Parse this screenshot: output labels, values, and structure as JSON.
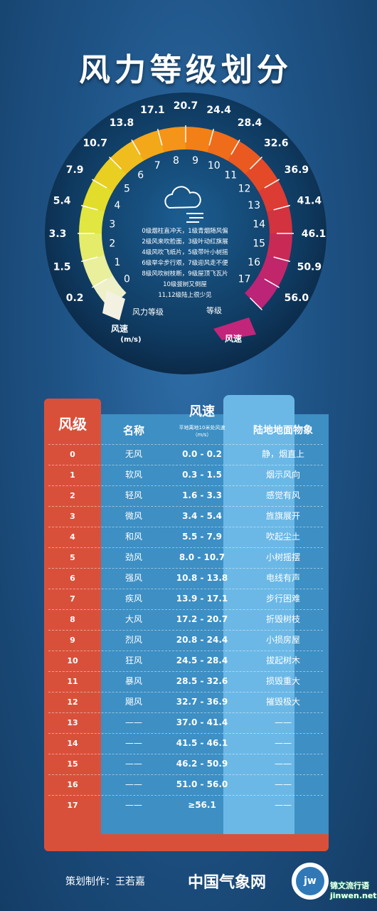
{
  "title": "风力等级划分",
  "gauge": {
    "speeds": [
      "0.2",
      "1.5",
      "3.3",
      "5.4",
      "7.9",
      "10.7",
      "13.8",
      "17.1",
      "20.7",
      "24.4",
      "28.4",
      "32.6",
      "36.9",
      "41.4",
      "46.1",
      "50.9",
      "56.0"
    ],
    "levels": [
      "0",
      "1",
      "2",
      "3",
      "4",
      "5",
      "6",
      "7",
      "8",
      "9",
      "10",
      "11",
      "12",
      "13",
      "14",
      "15",
      "16",
      "17"
    ],
    "level_label": "风力等级",
    "level_label2": "等级",
    "speed_label_left": "风速",
    "speed_unit_left": "(m/s)",
    "speed_label_right": "风速",
    "cloud_icon": "cloud-wind-icon",
    "legend": [
      "0级烟柱直冲天，1级青烟随风偏",
      "2级风来吹脸面，3级叶动红旗展",
      "4级风吹飞纸片，5级带叶小树摇",
      "6级举伞步行艰，7级迎风走不便",
      "8级风吹树枝断，9级屋顶飞瓦片",
      "10级拔树又倒屋",
      "11,12级陆上很少见"
    ]
  },
  "table": {
    "headers": {
      "level": "风级",
      "name": "名称",
      "speed": "风速",
      "speed_sub": "平地离地10米处风速",
      "speed_unit": "（m/s）",
      "phenomenon": "陆地地面物象"
    },
    "rows": [
      {
        "level": "0",
        "name": "无风",
        "speed": "0.0 - 0.2",
        "phenomenon": "静，烟直上"
      },
      {
        "level": "1",
        "name": "软风",
        "speed": "0.3 - 1.5",
        "phenomenon": "烟示风向"
      },
      {
        "level": "2",
        "name": "轻风",
        "speed": "1.6 - 3.3",
        "phenomenon": "感觉有风"
      },
      {
        "level": "3",
        "name": "微风",
        "speed": "3.4 - 5.4",
        "phenomenon": "旌旗展开"
      },
      {
        "level": "4",
        "name": "和风",
        "speed": "5.5 - 7.9",
        "phenomenon": "吹起尘土"
      },
      {
        "level": "5",
        "name": "劲风",
        "speed": "8.0 - 10.7",
        "phenomenon": "小树摇摆"
      },
      {
        "level": "6",
        "name": "强风",
        "speed": "10.8 - 13.8",
        "phenomenon": "电线有声"
      },
      {
        "level": "7",
        "name": "疾风",
        "speed": "13.9 - 17.1",
        "phenomenon": "步行困难"
      },
      {
        "level": "8",
        "name": "大风",
        "speed": "17.2 - 20.7",
        "phenomenon": "折毁树枝"
      },
      {
        "level": "9",
        "name": "烈风",
        "speed": "20.8 - 24.4",
        "phenomenon": "小损房屋"
      },
      {
        "level": "10",
        "name": "狂风",
        "speed": "24.5 - 28.4",
        "phenomenon": "拔起树木"
      },
      {
        "level": "11",
        "name": "暴风",
        "speed": "28.5 - 32.6",
        "phenomenon": "损毁重大"
      },
      {
        "level": "12",
        "name": "飓风",
        "speed": "32.7 - 36.9",
        "phenomenon": "摧毁极大"
      },
      {
        "level": "13",
        "name": "——",
        "speed": "37.0 - 41.4",
        "phenomenon": "——"
      },
      {
        "level": "14",
        "name": "——",
        "speed": "41.5 - 46.1",
        "phenomenon": "——"
      },
      {
        "level": "15",
        "name": "——",
        "speed": "46.2 - 50.9",
        "phenomenon": "——"
      },
      {
        "level": "16",
        "name": "——",
        "speed": "51.0 - 56.0",
        "phenomenon": "——"
      },
      {
        "level": "17",
        "name": "——",
        "speed": "≥56.1",
        "phenomenon": "——"
      }
    ]
  },
  "footer": {
    "credit": "策划制作：王若嘉",
    "brand": "中国气象网",
    "logo_text": "jw",
    "watermark_line1": "锦文流行语",
    "watermark_line2": "jinwen.net"
  },
  "colors": {
    "accent_red": "#d9503a",
    "table_blue": "#3d8fc4",
    "speed_blue": "#6bb8e6"
  }
}
